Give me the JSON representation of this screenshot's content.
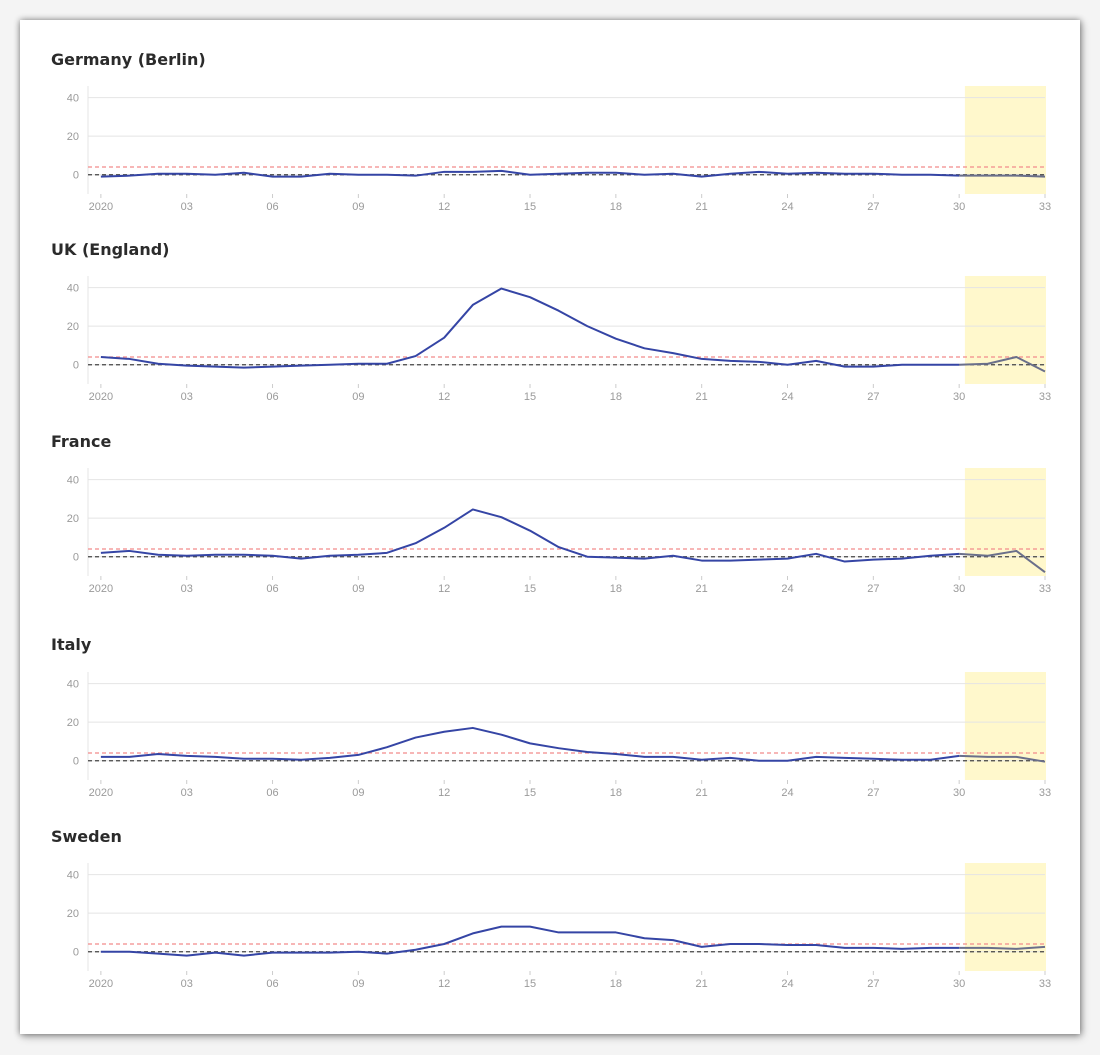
{
  "colors": {
    "line": "#3545a5",
    "forecast_line": "#6a6f8a",
    "threshold": "#f28b8b",
    "baseline": "#444444",
    "grid": "#e4e4e4",
    "highlight": "#fff8cc"
  },
  "chart_data": [
    {
      "type": "line",
      "title": "Germany (Berlin)",
      "x": [
        1,
        2,
        3,
        4,
        5,
        6,
        7,
        8,
        9,
        10,
        11,
        12,
        13,
        14,
        15,
        16,
        17,
        18,
        19,
        20,
        21,
        22,
        23,
        24,
        25,
        26,
        27,
        28,
        29,
        30,
        31,
        32,
        33,
        34
      ],
      "series": [
        {
          "values": [
            -1,
            -0.5,
            0.5,
            0.5,
            0,
            1,
            -1,
            -1,
            0.5,
            0,
            0,
            -0.5,
            1.5,
            1.5,
            2,
            0,
            0.5,
            1,
            1,
            0,
            0.5,
            -1,
            0.5,
            1.5,
            0.5,
            1,
            0.5,
            0.5,
            0,
            0,
            -0.5,
            -0.5,
            -0.5,
            -1
          ]
        }
      ],
      "x_ticks": [
        "2020",
        "03",
        "06",
        "09",
        "12",
        "15",
        "18",
        "21",
        "24",
        "27",
        "30",
        "33"
      ],
      "y_ticks": [
        0,
        20,
        40
      ],
      "ylim": [
        -10,
        46
      ],
      "threshold": 4,
      "baseline": 0,
      "highlight_from_week": 31.2
    },
    {
      "type": "line",
      "title": "UK (England)",
      "x": [
        1,
        2,
        3,
        4,
        5,
        6,
        7,
        8,
        9,
        10,
        11,
        12,
        13,
        14,
        15,
        16,
        17,
        18,
        19,
        20,
        21,
        22,
        23,
        24,
        25,
        26,
        27,
        28,
        29,
        30,
        31,
        32,
        33,
        34
      ],
      "series": [
        {
          "values": [
            4,
            3,
            0.5,
            -0.5,
            -1,
            -1.5,
            -1,
            -0.5,
            0,
            0.5,
            0.5,
            4.5,
            14,
            31,
            39.5,
            35,
            28,
            20,
            13.5,
            8.5,
            6,
            3,
            2,
            1.5,
            0,
            2,
            -1,
            -1,
            0,
            0,
            0,
            0.5,
            4,
            -3.5
          ]
        }
      ],
      "x_ticks": [
        "2020",
        "03",
        "06",
        "09",
        "12",
        "15",
        "18",
        "21",
        "24",
        "27",
        "30",
        "33"
      ],
      "y_ticks": [
        0,
        20,
        40
      ],
      "ylim": [
        -10,
        46
      ],
      "threshold": 4,
      "baseline": 0,
      "highlight_from_week": 31.2
    },
    {
      "type": "line",
      "title": "France",
      "x": [
        1,
        2,
        3,
        4,
        5,
        6,
        7,
        8,
        9,
        10,
        11,
        12,
        13,
        14,
        15,
        16,
        17,
        18,
        19,
        20,
        21,
        22,
        23,
        24,
        25,
        26,
        27,
        28,
        29,
        30,
        31,
        32,
        33,
        34
      ],
      "series": [
        {
          "values": [
            2,
            3,
            1,
            0.5,
            1,
            1,
            0.5,
            -1,
            0.5,
            1,
            2,
            7,
            15,
            24.5,
            20.5,
            13.5,
            5,
            0,
            -0.5,
            -1,
            0.5,
            -2,
            -2,
            -1.5,
            -1,
            1.5,
            -2.5,
            -1.5,
            -1,
            0.5,
            1.5,
            0.5,
            3,
            -8
          ]
        }
      ],
      "x_ticks": [
        "2020",
        "03",
        "06",
        "09",
        "12",
        "15",
        "18",
        "21",
        "24",
        "27",
        "30",
        "33"
      ],
      "y_ticks": [
        0,
        20,
        40
      ],
      "ylim": [
        -10,
        46
      ],
      "threshold": 4,
      "baseline": 0,
      "highlight_from_week": 31.2
    },
    {
      "type": "line",
      "title": "Italy",
      "x": [
        1,
        2,
        3,
        4,
        5,
        6,
        7,
        8,
        9,
        10,
        11,
        12,
        13,
        14,
        15,
        16,
        17,
        18,
        19,
        20,
        21,
        22,
        23,
        24,
        25,
        26,
        27,
        28,
        29,
        30,
        31,
        32,
        33,
        34
      ],
      "series": [
        {
          "values": [
            2,
            2,
            3.5,
            2.5,
            2,
            1,
            1,
            0.5,
            1.5,
            3,
            7,
            12,
            15,
            17,
            13.5,
            9,
            6.5,
            4.5,
            3.5,
            2,
            2,
            0.5,
            1.5,
            0,
            0,
            2,
            1.5,
            1,
            0.5,
            0.5,
            2.5,
            2,
            2,
            -0.5
          ]
        }
      ],
      "x_ticks": [
        "2020",
        "03",
        "06",
        "09",
        "12",
        "15",
        "18",
        "21",
        "24",
        "27",
        "30",
        "33"
      ],
      "y_ticks": [
        0,
        20,
        40
      ],
      "ylim": [
        -10,
        46
      ],
      "threshold": 4,
      "baseline": 0,
      "highlight_from_week": 31.2
    },
    {
      "type": "line",
      "title": "Sweden",
      "x": [
        1,
        2,
        3,
        4,
        5,
        6,
        7,
        8,
        9,
        10,
        11,
        12,
        13,
        14,
        15,
        16,
        17,
        18,
        19,
        20,
        21,
        22,
        23,
        24,
        25,
        26,
        27,
        28,
        29,
        30,
        31,
        32,
        33,
        34
      ],
      "series": [
        {
          "values": [
            0,
            0,
            -1,
            -2,
            -0.5,
            -2,
            -0.5,
            -0.5,
            -0.5,
            0,
            -1,
            1,
            4,
            9.5,
            13,
            13,
            10,
            10,
            10,
            7,
            6,
            2.5,
            4,
            4,
            3.5,
            3.5,
            2,
            2,
            1.5,
            2,
            2,
            2,
            1.5,
            2.5
          ]
        }
      ],
      "x_ticks": [
        "2020",
        "03",
        "06",
        "09",
        "12",
        "15",
        "18",
        "21",
        "24",
        "27",
        "30",
        "33"
      ],
      "y_ticks": [
        0,
        20,
        40
      ],
      "ylim": [
        -10,
        46
      ],
      "threshold": 4,
      "baseline": 0,
      "highlight_from_week": 31.2
    }
  ]
}
